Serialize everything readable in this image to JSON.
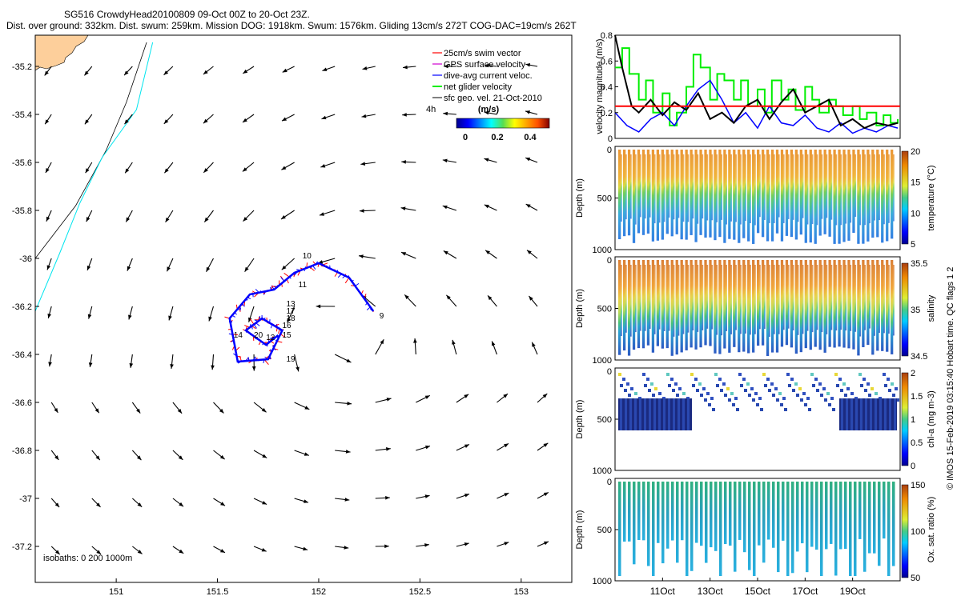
{
  "header": {
    "title_line1": "SG516 CrowdyHead20100809 09-Oct 00Z to 20-Oct 23Z.",
    "title_line2": "Dist. over ground: 332km. Dist. swum: 259km. Mission DOG: 1918km. Swum: 1576km. Gliding 13cm/s 272T COG-DAC=19cm/s 262T"
  },
  "map": {
    "legend": [
      "25cm/s swim vector",
      "GPS surface velocity",
      "dive-avg current veloc.",
      "net glider velocity",
      "sfc geo. vel. 21-Oct-2010"
    ],
    "legend_time": "4h",
    "colorbar_title": "(m/s)",
    "colorbar_ticks": [
      "0",
      "0.2",
      "0.4"
    ],
    "isobath_label": "isobaths: 0   200  1000m",
    "day_labels": [
      "9",
      "10",
      "11",
      "12",
      "13",
      "14",
      "15",
      "16",
      "17",
      "18",
      "19",
      "20"
    ],
    "colors": {
      "land": "#fdcf9b",
      "isobath_200": "#00e5ee",
      "track_red": "#ff0000",
      "track_blue": "#0000ff"
    }
  },
  "side_note": "© IMOS 15-Feb-2019 03:15:40 Hobart time. QC flags 1  2",
  "chart_data": [
    {
      "type": "line",
      "name": "map",
      "xlabel": "",
      "ylabel": "",
      "xlim": [
        150.6,
        153.25
      ],
      "ylim": [
        -37.35,
        -35.07
      ],
      "x_ticks": [
        "151",
        "151.5",
        "152",
        "152.5",
        "153"
      ],
      "y_ticks": [
        "-35.2",
        "-35.4",
        "-35.6",
        "-35.8",
        "-36",
        "-36.2",
        "-36.4",
        "-36.6",
        "-36.8",
        "-37",
        "-37.2"
      ],
      "series": [
        {
          "name": "isobath 1000m",
          "lon": [
            150.6,
            150.8,
            150.95,
            151.05,
            151.15
          ],
          "lat": [
            -36.0,
            -35.78,
            -35.55,
            -35.35,
            -35.1
          ]
        },
        {
          "name": "isobath 200m",
          "lon": [
            150.6,
            150.72,
            150.82,
            150.93,
            151.1,
            151.18
          ],
          "lat": [
            -36.22,
            -35.98,
            -35.77,
            -35.58,
            -35.38,
            -35.1
          ]
        },
        {
          "name": "dive-avg current track",
          "lon": [
            152.27,
            152.15,
            152.0,
            151.88,
            151.78,
            151.66,
            151.56,
            151.6,
            151.75,
            151.82,
            151.72,
            151.64,
            151.74,
            151.8
          ],
          "lat": [
            -36.22,
            -36.08,
            -36.02,
            -36.06,
            -36.13,
            -36.15,
            -36.25,
            -36.43,
            -36.42,
            -36.3,
            -36.25,
            -36.3,
            -36.36,
            -36.32
          ]
        }
      ]
    },
    {
      "type": "line",
      "name": "velocity",
      "ylabel": "velocity magnitude (m/s)",
      "ylim": [
        0,
        0.8
      ],
      "y_ticks": [
        "0",
        "0.2",
        "0.4",
        "0.6",
        "0.8"
      ],
      "xlim": [
        9.0,
        21.0
      ],
      "series": [
        {
          "name": "reference",
          "x": [
            9.0,
            21.0
          ],
          "y": [
            0.25,
            0.25
          ]
        },
        {
          "name": "net glider velocity",
          "x": [
            9.0,
            9.3,
            9.6,
            10.0,
            10.3,
            10.6,
            11.0,
            11.3,
            11.6,
            12.0,
            12.3,
            12.6,
            13.0,
            13.3,
            13.6,
            14.0,
            14.3,
            14.6,
            15.0,
            15.3,
            15.6,
            16.0,
            16.3,
            16.6,
            17.0,
            17.3,
            17.6,
            18.0,
            18.3,
            18.6,
            19.0,
            19.3,
            19.6,
            20.0,
            20.3,
            20.6,
            20.9
          ],
          "y": [
            0.55,
            0.7,
            0.5,
            0.3,
            0.45,
            0.2,
            0.35,
            0.1,
            0.2,
            0.4,
            0.65,
            0.55,
            0.3,
            0.5,
            0.45,
            0.3,
            0.45,
            0.25,
            0.38,
            0.2,
            0.45,
            0.3,
            0.38,
            0.22,
            0.4,
            0.3,
            0.2,
            0.3,
            0.25,
            0.18,
            0.25,
            0.15,
            0.2,
            0.1,
            0.18,
            0.12,
            0.15
          ]
        },
        {
          "name": "dive-avg current",
          "x": [
            9.0,
            9.5,
            10.0,
            10.5,
            11.0,
            11.5,
            12.0,
            12.5,
            13.0,
            13.5,
            14.0,
            14.5,
            15.0,
            15.5,
            16.0,
            16.5,
            17.0,
            17.5,
            18.0,
            18.5,
            19.0,
            19.5,
            20.0,
            20.5,
            20.9
          ],
          "y": [
            0.2,
            0.1,
            0.05,
            0.15,
            0.2,
            0.1,
            0.25,
            0.38,
            0.45,
            0.3,
            0.12,
            0.2,
            0.08,
            0.25,
            0.12,
            0.1,
            0.18,
            0.08,
            0.05,
            0.12,
            0.04,
            0.08,
            0.05,
            0.1,
            0.08
          ]
        },
        {
          "name": "black",
          "x": [
            9.0,
            9.3,
            9.7,
            10.0,
            10.5,
            11.0,
            11.5,
            12.0,
            12.5,
            13.0,
            13.5,
            14.0,
            14.5,
            15.0,
            15.5,
            16.0,
            16.5,
            17.0,
            17.5,
            18.0,
            18.5,
            19.0,
            19.5,
            20.0,
            20.5,
            20.9
          ],
          "y": [
            0.8,
            0.55,
            0.25,
            0.2,
            0.3,
            0.18,
            0.28,
            0.22,
            0.35,
            0.15,
            0.2,
            0.12,
            0.25,
            0.3,
            0.15,
            0.28,
            0.38,
            0.2,
            0.25,
            0.3,
            0.1,
            0.15,
            0.08,
            0.12,
            0.1,
            0.12
          ]
        }
      ]
    },
    {
      "type": "heatmap",
      "name": "temperature",
      "ylabel": "Depth (m)",
      "colorbar_label": "temperature (°C)",
      "colorbar_ticks": [
        "5",
        "10",
        "15",
        "20"
      ],
      "ylim": [
        1000,
        0
      ],
      "y_ticks": [
        "0",
        "500",
        "1000"
      ]
    },
    {
      "type": "heatmap",
      "name": "salinity",
      "ylabel": "Depth (m)",
      "colorbar_label": "salinity",
      "colorbar_ticks": [
        "34.5",
        "35",
        "35.5"
      ],
      "ylim": [
        1000,
        0
      ],
      "y_ticks": [
        "0",
        "500",
        "1000"
      ]
    },
    {
      "type": "heatmap",
      "name": "chl-a",
      "ylabel": "Depth (m)",
      "colorbar_label": "chl-a (mg m-3)",
      "colorbar_ticks": [
        "0",
        "0.5",
        "1",
        "1.5",
        "2"
      ],
      "ylim": [
        1000,
        0
      ],
      "y_ticks": [
        "0",
        "500",
        "1000"
      ]
    },
    {
      "type": "heatmap",
      "name": "oxygen",
      "ylabel": "Depth (m)",
      "colorbar_label": "Ox. sat. ratio (%)",
      "colorbar_ticks": [
        "50",
        "100",
        "150"
      ],
      "ylim": [
        1000,
        0
      ],
      "y_ticks": [
        "0",
        "500",
        "1000"
      ],
      "x_ticks": [
        "11Oct",
        "13Oct",
        "15Oct",
        "17Oct",
        "19Oct"
      ]
    }
  ]
}
